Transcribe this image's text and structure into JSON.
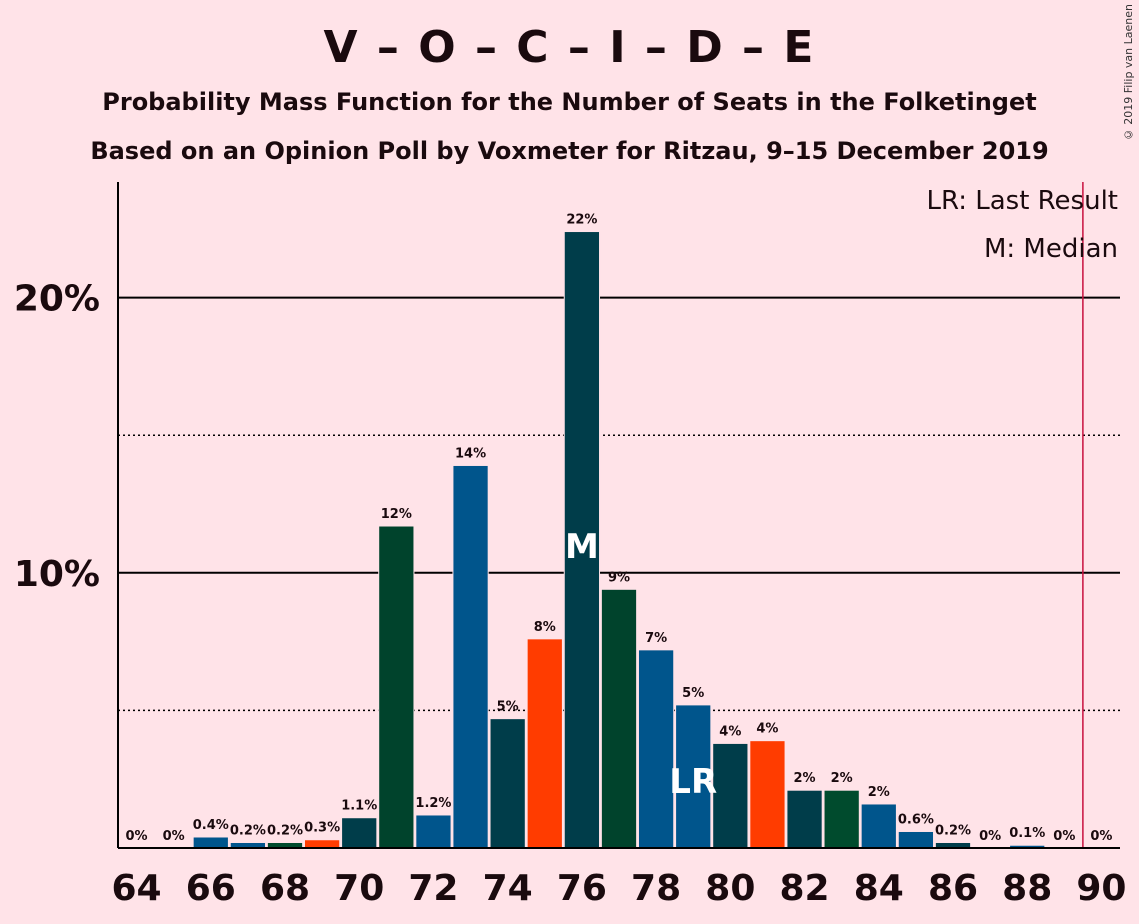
{
  "title": "V – O – C – I – D – E",
  "subtitle1": "Probability Mass Function for the Number of Seats in the Folketinget",
  "subtitle2": "Based on an Opinion Poll by Voxmeter for Ritzau, 9–15 December 2019",
  "copyright": "© 2019 Filip van Laenen",
  "legend": {
    "lr": "LR: Last Result",
    "median": "M: Median"
  },
  "colors": {
    "background": "#FFE3E8",
    "palette": [
      "#00558C",
      "#00432C",
      "#FF3C00",
      "#003D4A",
      "#004B2D",
      "#004C3C"
    ],
    "majority_line": "#C8103E"
  },
  "chart_data": {
    "type": "bar",
    "x": [
      64,
      65,
      66,
      67,
      68,
      69,
      70,
      71,
      72,
      73,
      74,
      75,
      76,
      77,
      78,
      79,
      80,
      81,
      82,
      83,
      84,
      85,
      86,
      87,
      88,
      89,
      90
    ],
    "values": [
      0,
      0,
      0.4,
      0.2,
      0.2,
      0.3,
      1.1,
      11.7,
      1.2,
      13.9,
      4.7,
      7.6,
      22.4,
      9.4,
      7.2,
      5.2,
      3.8,
      3.9,
      2.1,
      2.1,
      1.6,
      0.6,
      0.2,
      0,
      0.1,
      0,
      0
    ],
    "labels": [
      "0%",
      "0%",
      "0.4%",
      "0.2%",
      "0.2%",
      "0.3%",
      "1.1%",
      "12%",
      "1.2%",
      "14%",
      "5%",
      "8%",
      "22%",
      "9%",
      "7%",
      "5%",
      "4%",
      "4%",
      "2%",
      "2%",
      "2%",
      "0.6%",
      "0.2%",
      "0%",
      "0.1%",
      "0%",
      "0%"
    ],
    "colors": [
      "#00558C",
      "#003D4A",
      "#00558C",
      "#00558C",
      "#004B2D",
      "#FF3C00",
      "#003D4A",
      "#00432C",
      "#00558C",
      "#00558C",
      "#003D4A",
      "#FF3C00",
      "#003D4A",
      "#00432C",
      "#00558C",
      "#00558C",
      "#003D4A",
      "#FF3C00",
      "#003D4A",
      "#004B2D",
      "#00558C",
      "#00558C",
      "#003D4A",
      "#00558C",
      "#00558C",
      "#00558C",
      "#00558C"
    ],
    "xticks": [
      64,
      66,
      68,
      70,
      72,
      74,
      76,
      78,
      80,
      82,
      84,
      86,
      88,
      90
    ],
    "yticks_solid": [
      10,
      20
    ],
    "yticks_dotted": [
      5,
      15
    ],
    "ytick_labels": [
      "10%",
      "20%"
    ],
    "ylim": [
      0,
      24.2
    ],
    "xlim": [
      63.5,
      90.5
    ],
    "median": 76,
    "median_label": "M",
    "last_result": 79,
    "last_result_label": "LR",
    "majority": 89.5
  }
}
